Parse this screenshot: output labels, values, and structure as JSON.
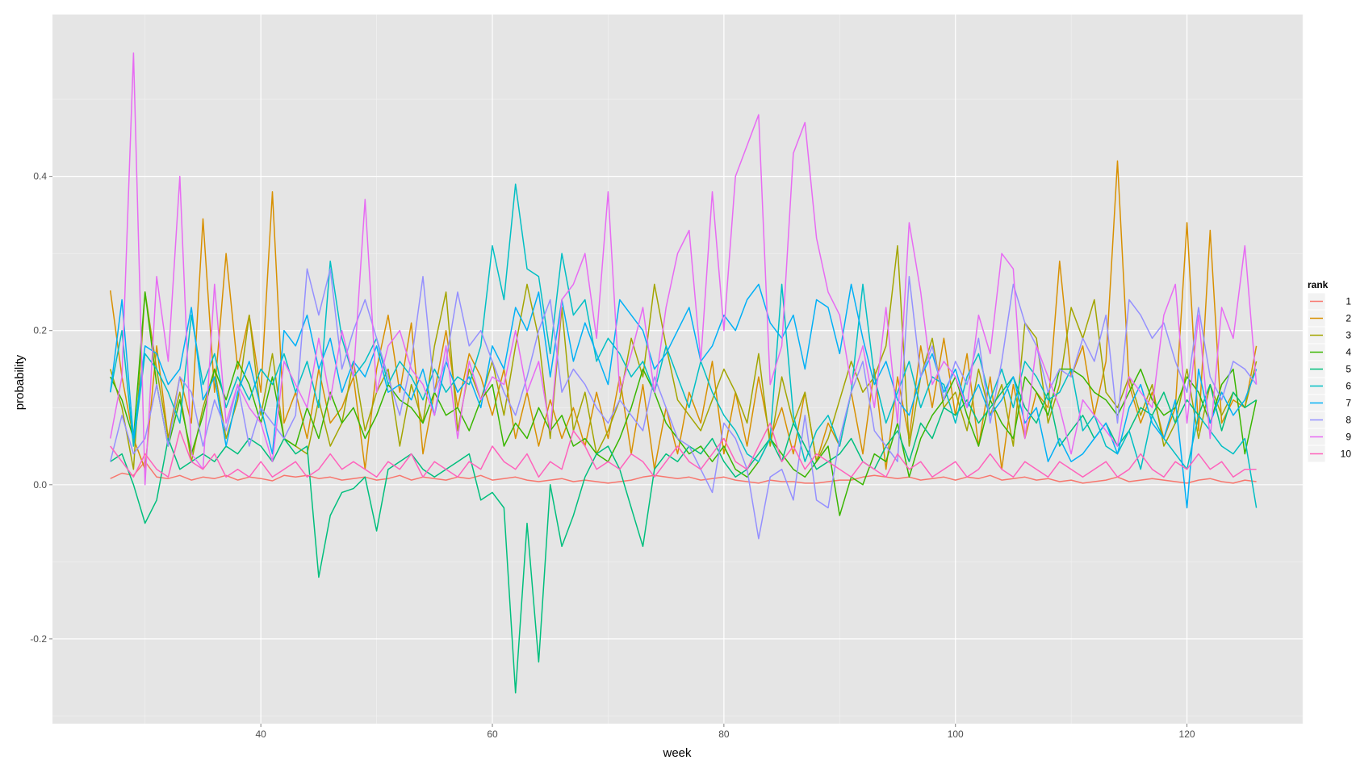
{
  "chart_data": {
    "type": "line",
    "xlabel": "week",
    "ylabel": "probability",
    "xlim": [
      22,
      130
    ],
    "ylim": [
      -0.31,
      0.61
    ],
    "x_ticks": [
      40,
      60,
      80,
      100,
      120
    ],
    "y_ticks": [
      -0.2,
      0.0,
      0.2,
      0.4
    ],
    "x_tick_labels": [
      "40",
      "60",
      "80",
      "100",
      "120"
    ],
    "y_tick_labels": [
      "-0.2",
      "0.0",
      "0.2",
      "0.4"
    ],
    "grid": true,
    "legend": {
      "title": "rank",
      "position": "right"
    },
    "x": [
      27,
      28,
      29,
      30,
      31,
      32,
      33,
      34,
      35,
      36,
      37,
      38,
      39,
      40,
      41,
      42,
      43,
      44,
      45,
      46,
      47,
      48,
      49,
      50,
      51,
      52,
      53,
      54,
      55,
      56,
      57,
      58,
      59,
      60,
      61,
      62,
      63,
      64,
      65,
      66,
      67,
      68,
      69,
      70,
      71,
      72,
      73,
      74,
      75,
      76,
      77,
      78,
      79,
      80,
      81,
      82,
      83,
      84,
      85,
      86,
      87,
      88,
      89,
      90,
      91,
      92,
      93,
      94,
      95,
      96,
      97,
      98,
      99,
      100,
      101,
      102,
      103,
      104,
      105,
      106,
      107,
      108,
      109,
      110,
      111,
      112,
      113,
      114,
      115,
      116,
      117,
      118,
      119,
      120,
      121,
      122,
      123,
      124,
      125,
      126
    ],
    "series": [
      {
        "name": "1",
        "color": "#F8766D",
        "values": [
          0.008,
          0.015,
          0.012,
          0.03,
          0.01,
          0.008,
          0.012,
          0.006,
          0.01,
          0.008,
          0.012,
          0.006,
          0.01,
          0.008,
          0.005,
          0.012,
          0.01,
          0.012,
          0.008,
          0.01,
          0.006,
          0.008,
          0.01,
          0.006,
          0.008,
          0.012,
          0.006,
          0.01,
          0.008,
          0.006,
          0.01,
          0.008,
          0.012,
          0.006,
          0.008,
          0.01,
          0.006,
          0.004,
          0.006,
          0.008,
          0.004,
          0.006,
          0.004,
          0.002,
          0.004,
          0.006,
          0.01,
          0.012,
          0.01,
          0.008,
          0.01,
          0.006,
          0.008,
          0.01,
          0.006,
          0.004,
          0.002,
          0.006,
          0.004,
          0.004,
          0.002,
          0.002,
          0.004,
          0.006,
          0.006,
          0.01,
          0.012,
          0.01,
          0.008,
          0.01,
          0.006,
          0.008,
          0.01,
          0.006,
          0.01,
          0.008,
          0.012,
          0.006,
          0.008,
          0.01,
          0.006,
          0.008,
          0.004,
          0.006,
          0.002,
          0.004,
          0.006,
          0.01,
          0.004,
          0.006,
          0.008,
          0.006,
          0.004,
          0.002,
          0.006,
          0.008,
          0.004,
          0.002,
          0.006,
          0.004
        ]
      },
      {
        "name": "2",
        "color": "#D89000",
        "values": [
          0.252,
          0.14,
          0.06,
          0.02,
          0.18,
          0.06,
          0.14,
          0.08,
          0.345,
          0.12,
          0.3,
          0.15,
          0.22,
          0.12,
          0.38,
          0.08,
          0.12,
          0.06,
          0.15,
          0.08,
          0.1,
          0.14,
          0.02,
          0.15,
          0.22,
          0.12,
          0.21,
          0.04,
          0.12,
          0.2,
          0.1,
          0.17,
          0.14,
          0.09,
          0.15,
          0.06,
          0.12,
          0.05,
          0.11,
          0.06,
          0.1,
          0.05,
          0.12,
          0.06,
          0.14,
          0.04,
          0.13,
          0.02,
          0.1,
          0.04,
          0.12,
          0.08,
          0.16,
          0.04,
          0.12,
          0.05,
          0.14,
          0.06,
          0.1,
          0.04,
          0.12,
          0.03,
          0.08,
          0.05,
          0.12,
          0.04,
          0.15,
          0.02,
          0.14,
          0.06,
          0.18,
          0.1,
          0.19,
          0.09,
          0.17,
          0.05,
          0.14,
          0.02,
          0.13,
          0.06,
          0.12,
          0.1,
          0.29,
          0.14,
          0.18,
          0.09,
          0.16,
          0.42,
          0.13,
          0.08,
          0.12,
          0.06,
          0.1,
          0.34,
          0.07,
          0.33,
          0.08,
          0.11,
          0.1,
          0.18
        ]
      },
      {
        "name": "3",
        "color": "#A3A500",
        "values": [
          0.15,
          0.1,
          0.02,
          0.25,
          0.15,
          0.06,
          0.12,
          0.03,
          0.1,
          0.15,
          0.06,
          0.11,
          0.22,
          0.09,
          0.17,
          0.06,
          0.05,
          0.04,
          0.11,
          0.05,
          0.08,
          0.16,
          0.07,
          0.12,
          0.15,
          0.05,
          0.13,
          0.08,
          0.18,
          0.25,
          0.07,
          0.15,
          0.11,
          0.16,
          0.09,
          0.18,
          0.26,
          0.19,
          0.06,
          0.23,
          0.07,
          0.12,
          0.04,
          0.07,
          0.11,
          0.19,
          0.14,
          0.26,
          0.18,
          0.11,
          0.09,
          0.07,
          0.11,
          0.15,
          0.12,
          0.08,
          0.17,
          0.05,
          0.14,
          0.08,
          0.12,
          0.03,
          0.06,
          0.11,
          0.16,
          0.12,
          0.14,
          0.18,
          0.31,
          0.05,
          0.14,
          0.19,
          0.1,
          0.12,
          0.07,
          0.15,
          0.09,
          0.13,
          0.05,
          0.21,
          0.19,
          0.08,
          0.13,
          0.23,
          0.19,
          0.24,
          0.12,
          0.1,
          0.14,
          0.09,
          0.13,
          0.05,
          0.08,
          0.15,
          0.06,
          0.13,
          0.09,
          0.12,
          0.1,
          0.16
        ]
      },
      {
        "name": "4",
        "color": "#39B600",
        "values": [
          0.14,
          0.11,
          0.06,
          0.25,
          0.13,
          0.05,
          0.11,
          0.04,
          0.09,
          0.15,
          0.11,
          0.16,
          0.13,
          0.08,
          0.14,
          0.06,
          0.05,
          0.1,
          0.06,
          0.12,
          0.08,
          0.1,
          0.06,
          0.09,
          0.13,
          0.11,
          0.1,
          0.08,
          0.12,
          0.09,
          0.1,
          0.07,
          0.11,
          0.13,
          0.05,
          0.08,
          0.06,
          0.1,
          0.07,
          0.09,
          0.05,
          0.06,
          0.04,
          0.03,
          0.06,
          0.1,
          0.15,
          0.12,
          0.08,
          0.06,
          0.04,
          0.05,
          0.03,
          0.05,
          0.02,
          0.01,
          0.03,
          0.06,
          0.04,
          0.02,
          0.01,
          0.03,
          0.05,
          -0.04,
          0.01,
          0.0,
          0.04,
          0.03,
          0.08,
          0.01,
          0.06,
          0.09,
          0.11,
          0.14,
          0.09,
          0.05,
          0.11,
          0.08,
          0.06,
          0.14,
          0.12,
          0.09,
          0.15,
          0.15,
          0.14,
          0.12,
          0.11,
          0.09,
          0.12,
          0.15,
          0.11,
          0.09,
          0.1,
          0.14,
          0.12,
          0.08,
          0.13,
          0.15,
          0.04,
          0.11
        ]
      },
      {
        "name": "5",
        "color": "#00BF7D",
        "values": [
          0.03,
          0.04,
          0.0,
          -0.05,
          -0.02,
          0.06,
          0.02,
          0.03,
          0.04,
          0.03,
          0.05,
          0.04,
          0.06,
          0.05,
          0.03,
          0.06,
          0.04,
          0.05,
          -0.12,
          -0.04,
          -0.01,
          -0.005,
          0.01,
          -0.06,
          0.02,
          0.03,
          0.04,
          0.02,
          0.01,
          0.02,
          0.03,
          0.04,
          -0.02,
          -0.01,
          -0.03,
          -0.27,
          -0.05,
          -0.23,
          0.0,
          -0.08,
          -0.04,
          0.01,
          0.04,
          0.05,
          0.02,
          -0.03,
          -0.08,
          0.02,
          0.04,
          0.03,
          0.05,
          0.04,
          0.06,
          0.03,
          0.01,
          0.02,
          0.04,
          0.06,
          0.03,
          0.08,
          0.05,
          0.02,
          0.03,
          0.04,
          0.06,
          0.03,
          0.02,
          0.05,
          0.07,
          0.03,
          0.08,
          0.06,
          0.1,
          0.09,
          0.11,
          0.08,
          0.1,
          0.12,
          0.14,
          0.1,
          0.08,
          0.12,
          0.05,
          0.07,
          0.09,
          0.06,
          0.08,
          0.05,
          0.07,
          0.1,
          0.09,
          0.12,
          0.08,
          0.11,
          0.09,
          0.13,
          0.07,
          0.12,
          0.1,
          0.11
        ]
      },
      {
        "name": "6",
        "color": "#00BFC4",
        "values": [
          0.12,
          0.2,
          0.05,
          0.17,
          0.15,
          0.12,
          0.08,
          0.22,
          0.13,
          0.17,
          0.1,
          0.14,
          0.11,
          0.15,
          0.13,
          0.17,
          0.12,
          0.16,
          0.1,
          0.29,
          0.19,
          0.14,
          0.16,
          0.19,
          0.13,
          0.16,
          0.14,
          0.11,
          0.15,
          0.12,
          0.14,
          0.13,
          0.18,
          0.31,
          0.24,
          0.39,
          0.28,
          0.27,
          0.17,
          0.3,
          0.22,
          0.24,
          0.16,
          0.19,
          0.17,
          0.14,
          0.16,
          0.12,
          0.18,
          0.14,
          0.1,
          0.16,
          0.12,
          0.09,
          0.07,
          0.04,
          0.03,
          0.06,
          0.26,
          0.09,
          0.03,
          0.07,
          0.09,
          0.05,
          0.12,
          0.26,
          0.14,
          0.08,
          0.12,
          0.16,
          0.1,
          0.14,
          0.13,
          0.08,
          0.14,
          0.17,
          0.11,
          0.15,
          0.1,
          0.16,
          0.14,
          0.11,
          0.12,
          0.15,
          0.07,
          0.09,
          0.05,
          0.04,
          0.07,
          0.02,
          0.09,
          0.06,
          0.04,
          0.02,
          0.09,
          0.07,
          0.05,
          0.04,
          0.06,
          -0.03
        ]
      },
      {
        "name": "7",
        "color": "#00B0F6",
        "values": [
          0.12,
          0.24,
          0.06,
          0.18,
          0.17,
          0.13,
          0.15,
          0.23,
          0.11,
          0.14,
          0.05,
          0.12,
          0.16,
          0.1,
          0.04,
          0.2,
          0.18,
          0.22,
          0.15,
          0.19,
          0.12,
          0.16,
          0.14,
          0.18,
          0.12,
          0.13,
          0.11,
          0.15,
          0.09,
          0.16,
          0.12,
          0.14,
          0.1,
          0.18,
          0.15,
          0.23,
          0.2,
          0.25,
          0.14,
          0.24,
          0.16,
          0.21,
          0.17,
          0.13,
          0.24,
          0.22,
          0.2,
          0.15,
          0.17,
          0.2,
          0.23,
          0.16,
          0.18,
          0.22,
          0.2,
          0.24,
          0.26,
          0.21,
          0.19,
          0.22,
          0.15,
          0.24,
          0.23,
          0.17,
          0.26,
          0.19,
          0.13,
          0.16,
          0.11,
          0.09,
          0.14,
          0.17,
          0.12,
          0.15,
          0.1,
          0.13,
          0.09,
          0.11,
          0.14,
          0.08,
          0.1,
          0.03,
          0.06,
          0.03,
          0.04,
          0.06,
          0.08,
          0.04,
          0.1,
          0.13,
          0.08,
          0.06,
          0.11,
          -0.03,
          0.15,
          0.08,
          0.12,
          0.09,
          0.11,
          0.15
        ]
      },
      {
        "name": "8",
        "color": "#9590FF",
        "values": [
          0.03,
          0.09,
          0.04,
          0.06,
          0.13,
          0.05,
          0.14,
          0.12,
          0.05,
          0.11,
          0.07,
          0.13,
          0.05,
          0.1,
          0.08,
          0.06,
          0.09,
          0.28,
          0.22,
          0.28,
          0.15,
          0.2,
          0.24,
          0.19,
          0.14,
          0.09,
          0.16,
          0.27,
          0.12,
          0.16,
          0.25,
          0.18,
          0.2,
          0.16,
          0.12,
          0.09,
          0.14,
          0.2,
          0.24,
          0.12,
          0.15,
          0.13,
          0.1,
          0.08,
          0.11,
          0.09,
          0.07,
          0.14,
          0.1,
          0.06,
          0.05,
          0.02,
          -0.01,
          0.08,
          0.06,
          0.02,
          -0.07,
          0.01,
          0.02,
          -0.02,
          0.09,
          -0.02,
          -0.03,
          0.06,
          0.12,
          0.16,
          0.07,
          0.05,
          0.03,
          0.27,
          0.14,
          0.18,
          0.11,
          0.16,
          0.13,
          0.19,
          0.08,
          0.16,
          0.26,
          0.21,
          0.18,
          0.12,
          0.15,
          0.14,
          0.19,
          0.16,
          0.22,
          0.08,
          0.24,
          0.22,
          0.19,
          0.21,
          0.16,
          0.12,
          0.23,
          0.14,
          0.11,
          0.16,
          0.15,
          0.13
        ]
      },
      {
        "name": "9",
        "color": "#E76BF3",
        "values": [
          0.06,
          0.14,
          0.56,
          0.0,
          0.27,
          0.16,
          0.4,
          0.04,
          0.02,
          0.26,
          0.08,
          0.13,
          0.1,
          0.08,
          0.03,
          0.16,
          0.13,
          0.1,
          0.19,
          0.11,
          0.2,
          0.14,
          0.37,
          0.12,
          0.18,
          0.2,
          0.15,
          0.13,
          0.09,
          0.18,
          0.06,
          0.16,
          0.11,
          0.14,
          0.13,
          0.2,
          0.12,
          0.16,
          0.07,
          0.24,
          0.26,
          0.3,
          0.19,
          0.38,
          0.12,
          0.17,
          0.23,
          0.12,
          0.23,
          0.3,
          0.33,
          0.16,
          0.38,
          0.2,
          0.4,
          0.44,
          0.48,
          0.13,
          0.18,
          0.43,
          0.47,
          0.32,
          0.25,
          0.22,
          0.13,
          0.18,
          0.1,
          0.23,
          0.08,
          0.34,
          0.25,
          0.13,
          0.16,
          0.14,
          0.1,
          0.22,
          0.17,
          0.3,
          0.28,
          0.06,
          0.18,
          0.14,
          0.1,
          0.04,
          0.11,
          0.09,
          0.07,
          0.05,
          0.14,
          0.12,
          0.1,
          0.22,
          0.26,
          0.08,
          0.22,
          0.06,
          0.23,
          0.19,
          0.31,
          0.13
        ]
      },
      {
        "name": "10",
        "color": "#FF62BC",
        "values": [
          0.05,
          0.03,
          0.01,
          0.04,
          0.02,
          0.01,
          0.07,
          0.03,
          0.02,
          0.04,
          0.01,
          0.02,
          0.01,
          0.03,
          0.01,
          0.02,
          0.03,
          0.01,
          0.02,
          0.04,
          0.02,
          0.03,
          0.02,
          0.01,
          0.03,
          0.02,
          0.04,
          0.01,
          0.03,
          0.02,
          0.01,
          0.03,
          0.02,
          0.05,
          0.03,
          0.02,
          0.04,
          0.01,
          0.03,
          0.02,
          0.07,
          0.05,
          0.02,
          0.03,
          0.02,
          0.04,
          0.03,
          0.01,
          0.03,
          0.05,
          0.03,
          0.02,
          0.04,
          0.06,
          0.03,
          0.02,
          0.05,
          0.08,
          0.03,
          0.05,
          0.02,
          0.04,
          0.03,
          0.02,
          0.01,
          0.03,
          0.02,
          0.01,
          0.04,
          0.02,
          0.03,
          0.01,
          0.02,
          0.03,
          0.01,
          0.02,
          0.04,
          0.02,
          0.01,
          0.03,
          0.02,
          0.01,
          0.03,
          0.02,
          0.01,
          0.02,
          0.03,
          0.01,
          0.02,
          0.04,
          0.02,
          0.01,
          0.03,
          0.02,
          0.04,
          0.02,
          0.03,
          0.01,
          0.02,
          0.02
        ]
      }
    ]
  }
}
